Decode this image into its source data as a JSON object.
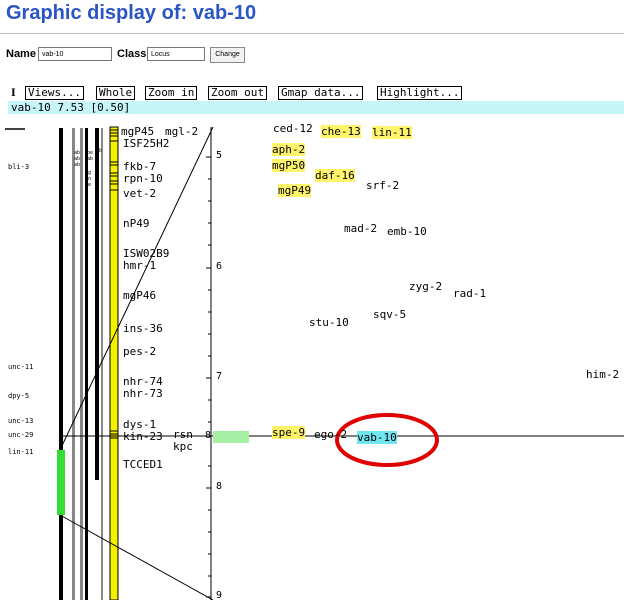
{
  "title": "Graphic display of: vab-10",
  "form": {
    "name_label": "Name",
    "name_value": "vab-10",
    "class_label": "Class",
    "class_value": "Locus",
    "change_label": "Change"
  },
  "toolbar": {
    "marker": "I",
    "views": "Views...",
    "whole": "Whole",
    "zoom_in": "Zoom in",
    "zoom_out": "Zoom out",
    "gmap": "Gmap data...",
    "highlight": "Highlight..."
  },
  "info_bar": "vab-10 7.53 [0.50]",
  "left_labels": {
    "bli3": "bli-3",
    "unc11": "unc-11",
    "dpy5": "dpy-5",
    "unc13": "unc-13",
    "unc29": "unc-29",
    "lin11": "lin-11"
  },
  "loci": {
    "mgP45": "mgP45",
    "mgl2": "mgl-2",
    "isf25h2": "ISF25H2",
    "fkb7": "fkb-7",
    "rpn10": "rpn-10",
    "vet2": "vet-2",
    "np49": "nP49",
    "isw02b9": "ISW02B9",
    "hmr1": "hmr-1",
    "mgp46": "mgP46",
    "ins36": "ins-36",
    "pes2": "pes-2",
    "nhr74": "nhr-74",
    "nhr73": "nhr-73",
    "dys1": "dys-1",
    "kin23": "kin-23",
    "rsn": "rsn",
    "kpc": "kpc",
    "tcced1": "TCCED1"
  },
  "scale_ticks": [
    "5",
    "6",
    "7",
    "8",
    "8",
    "9"
  ],
  "genes": {
    "ced12": "ced-12",
    "che13": "che-13",
    "lin11": "lin-11",
    "aph2": "aph-2",
    "mgp50": "mgP50",
    "daf16": "daf-16",
    "mgp49": "mgP49",
    "srf2": "srf-2",
    "mad2": "mad-2",
    "emb10": "emb-10",
    "zyg2": "zyg-2",
    "rad1": "rad-1",
    "sqv5": "sqv-5",
    "stu10": "stu-10",
    "him2": "him-2",
    "spe9": "spe-9",
    "ego2": "ego-2",
    "vab10": "vab-10"
  },
  "colors": {
    "title": "#2a55c8",
    "info_bar": "#c6f5f7",
    "highlight_yellow": "#fff46a",
    "highlight_cyan": "#6fe6ef",
    "chromosome_yellow": "#f5f000",
    "interval_green": "#33dd33",
    "focus_green": "#a5f0a5",
    "annotation_red": "#e00000"
  }
}
